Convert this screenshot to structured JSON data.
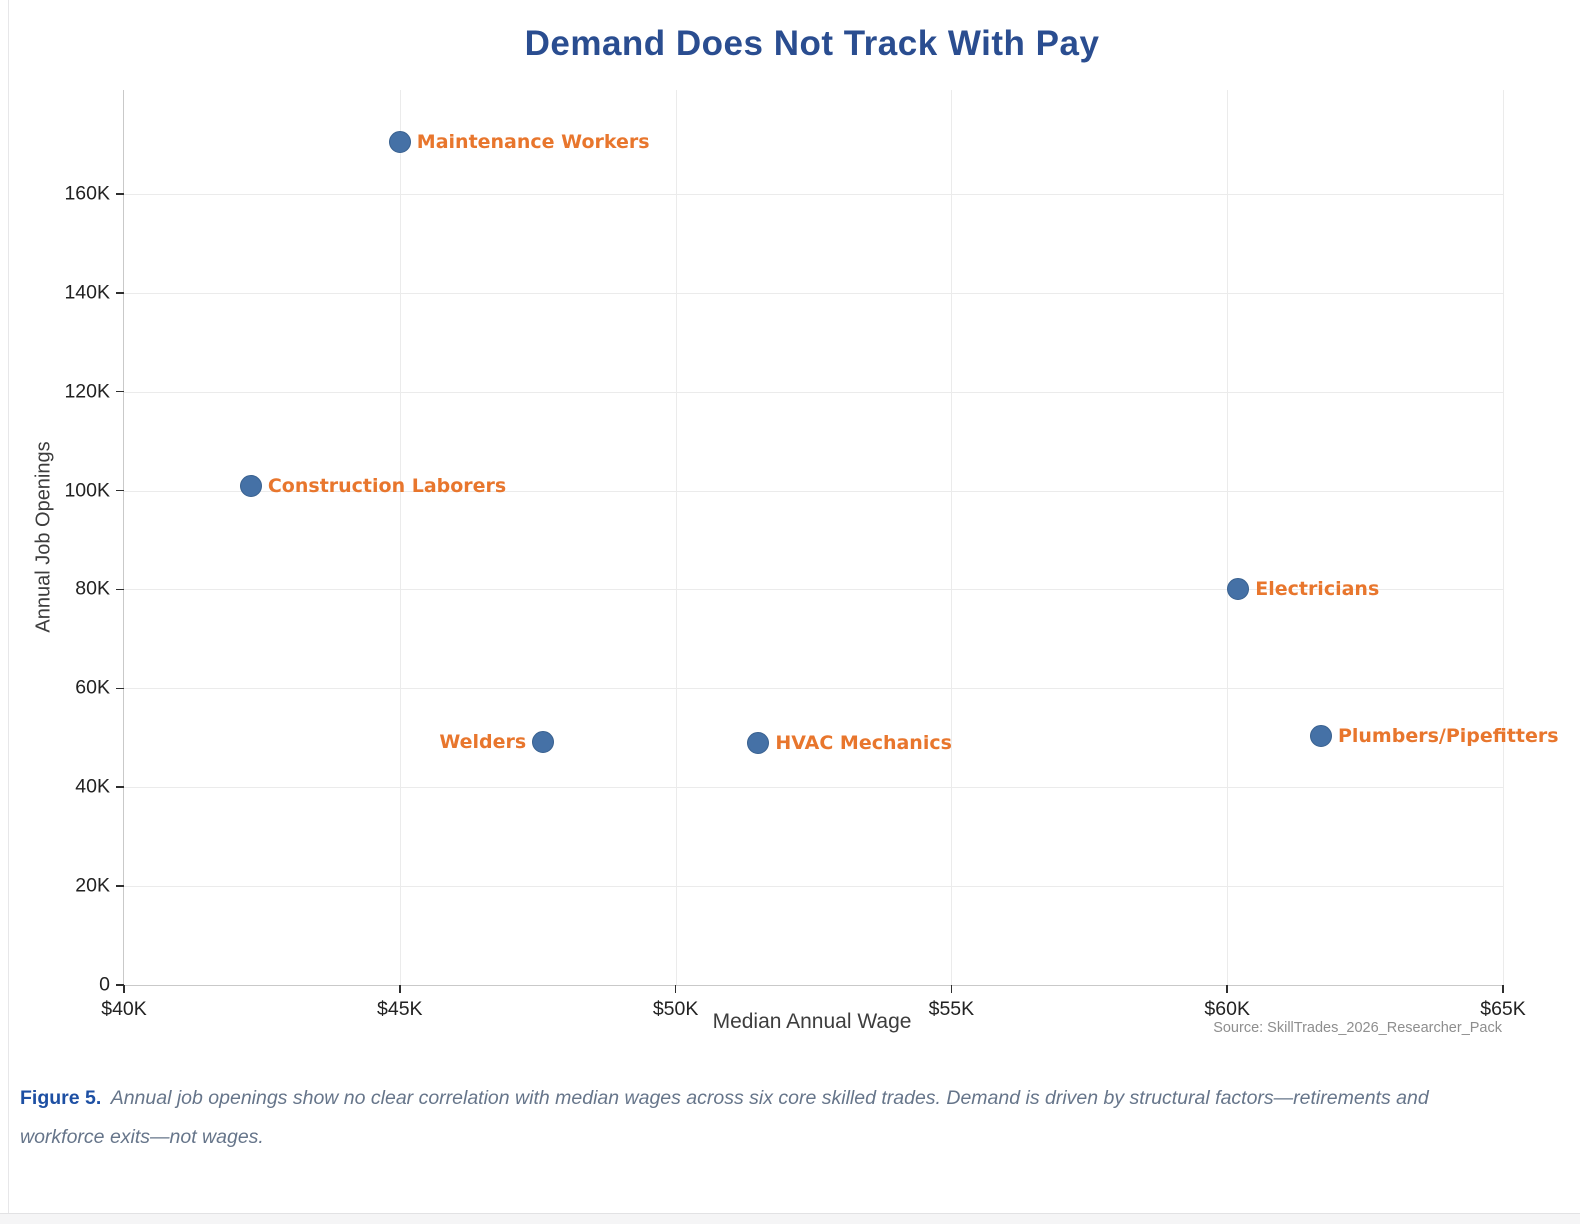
{
  "page": {
    "source_note": "Source: SkillTrades_2026_Researcher_Pack",
    "caption": {
      "label": "Figure 5.",
      "text": "Annual job openings show no clear correlation with median wages across six core skilled trades. Demand is driven by structural factors—retirements and workforce exits—not wages."
    }
  },
  "colors": {
    "title": "#2a4d90",
    "caption_label": "#1d4fa3",
    "caption_text": "#66758a",
    "source": "#8e8e8e",
    "grid": "#ebebeb",
    "axis": "#c9c9c9",
    "tick": "#2e2e2e",
    "tick_label": "#222222",
    "point_fill": "#4571a6",
    "point_edge": "#38608f",
    "point_label": "#e8762d"
  },
  "chart_data": {
    "type": "scatter",
    "title": "Demand Does Not Track With Pay",
    "xlabel": "Median Annual Wage",
    "ylabel": "Annual Job Openings",
    "units": {
      "x": "thousand USD per year",
      "y": "thousand job openings per year"
    },
    "xlim": [
      40,
      65
    ],
    "ylim": [
      0,
      181
    ],
    "grid": true,
    "legend": "none (points labeled directly)",
    "x_ticks": [
      {
        "v": 40,
        "label": "$40K"
      },
      {
        "v": 45,
        "label": "$45K"
      },
      {
        "v": 50,
        "label": "$50K"
      },
      {
        "v": 55,
        "label": "$55K"
      },
      {
        "v": 60,
        "label": "$60K"
      },
      {
        "v": 65,
        "label": "$65K"
      }
    ],
    "y_ticks": [
      {
        "v": 0,
        "label": "0"
      },
      {
        "v": 20,
        "label": "20K"
      },
      {
        "v": 40,
        "label": "40K"
      },
      {
        "v": 60,
        "label": "60K"
      },
      {
        "v": 80,
        "label": "80K"
      },
      {
        "v": 100,
        "label": "100K"
      },
      {
        "v": 120,
        "label": "120K"
      },
      {
        "v": 140,
        "label": "140K"
      },
      {
        "v": 160,
        "label": "160K"
      }
    ],
    "points": [
      {
        "label": "Construction Laborers",
        "wage_k": 42.3,
        "openings_k": 101,
        "label_side": "right"
      },
      {
        "label": "Maintenance Workers",
        "wage_k": 45.0,
        "openings_k": 170.5,
        "label_side": "right"
      },
      {
        "label": "Welders",
        "wage_k": 47.6,
        "openings_k": 49.2,
        "label_side": "left"
      },
      {
        "label": "HVAC Mechanics",
        "wage_k": 51.5,
        "openings_k": 48.9,
        "label_side": "right"
      },
      {
        "label": "Electricians",
        "wage_k": 60.2,
        "openings_k": 80,
        "label_side": "right"
      },
      {
        "label": "Plumbers/Pipefitters",
        "wage_k": 61.7,
        "openings_k": 50.4,
        "label_side": "right"
      }
    ]
  }
}
